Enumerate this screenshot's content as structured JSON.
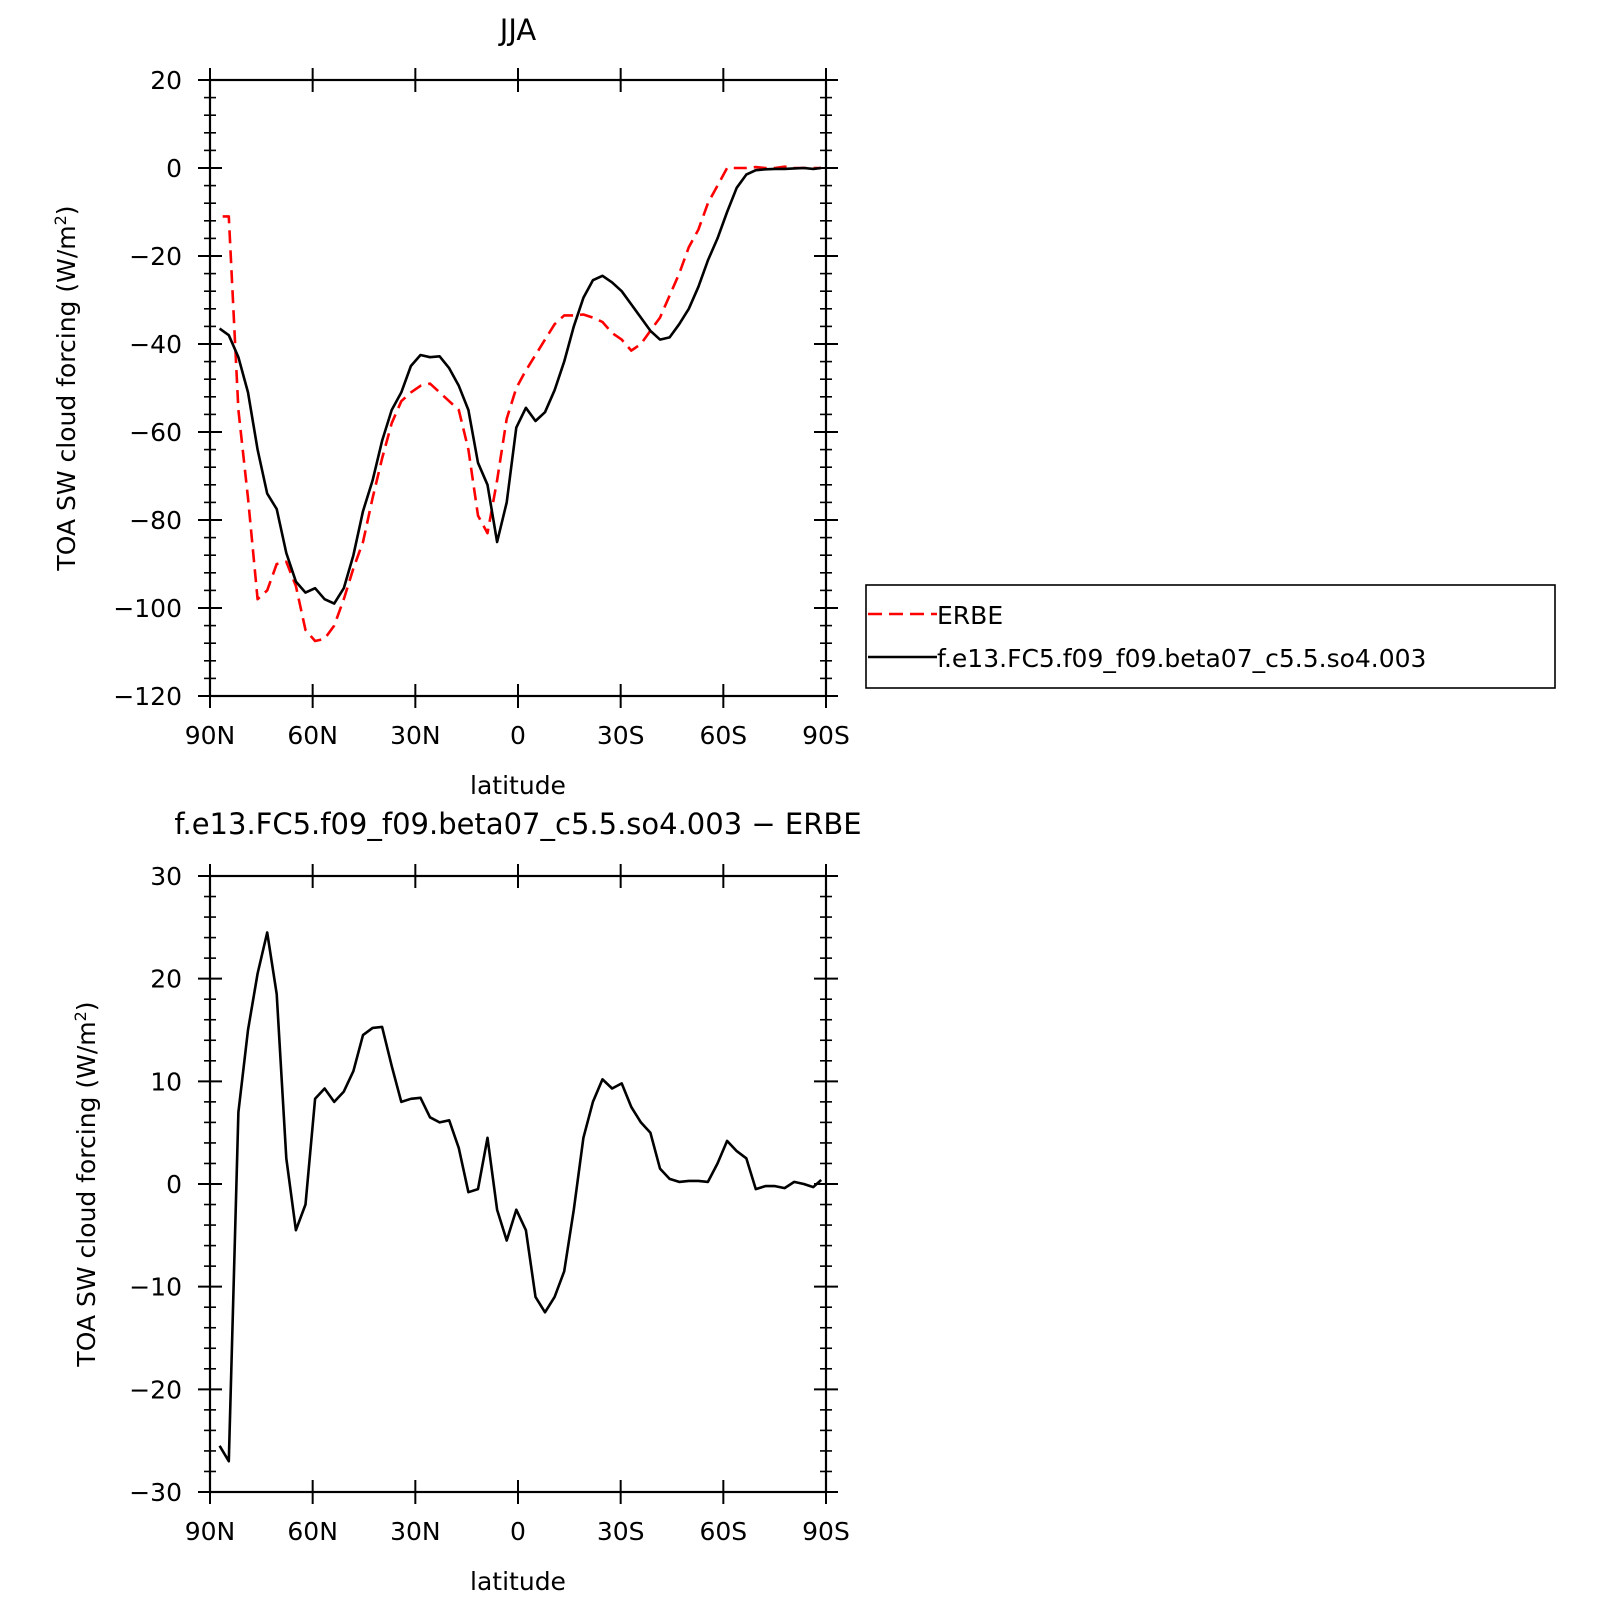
{
  "chart_data": [
    {
      "type": "line",
      "title": "JJA",
      "xlabel": "latitude",
      "ylabel": "TOA SW cloud forcing (W/m",
      "ylabel_sup": "2",
      "ylabel_close": ")",
      "xlim": [
        90,
        -90
      ],
      "ylim": [
        -120,
        20
      ],
      "x_ticks": [
        90,
        60,
        30,
        0,
        -30,
        -60,
        -90
      ],
      "x_tick_labels": [
        "90N",
        "60N",
        "30N",
        "0",
        "30S",
        "60S",
        "90S"
      ],
      "y_ticks": [
        20,
        0,
        -20,
        -40,
        -60,
        -80,
        -100,
        -120
      ],
      "y_tick_labels": [
        "20",
        "0",
        "−20",
        "−40",
        "−60",
        "−80",
        "−100",
        "−120"
      ],
      "legend_position": "right",
      "series": [
        {
          "name": "ERBE",
          "color": "#ff0000",
          "dash": "dashed",
          "x": [
            86.3,
            84.5,
            81.7,
            78.9,
            76.1,
            73.3,
            70.5,
            67.7,
            64.9,
            62.1,
            59.3,
            56.5,
            53.7,
            50.9,
            48.1,
            45.3,
            42.5,
            39.7,
            36.9,
            34.1,
            31.3,
            28.5,
            25.7,
            22.9,
            20.1,
            17.3,
            14.5,
            11.7,
            8.9,
            6.1,
            3.3,
            0.5,
            -2.3,
            -5.1,
            -7.9,
            -10.7,
            -13.5,
            -16.3,
            -19.1,
            -21.9,
            -24.7,
            -27.5,
            -30.3,
            -33.1,
            -35.9,
            -38.7,
            -41.5,
            -44.3,
            -47.1,
            -49.9,
            -52.7,
            -55.5,
            -58.3,
            -61.1,
            -63.9,
            -66.7,
            -69.5,
            -72.3,
            -75.1,
            -77.9,
            -80.7,
            -83.5,
            -86.3,
            -88.6
          ],
          "values": [
            -11,
            -11,
            -55,
            -75,
            -98,
            -96,
            -90,
            -89.5,
            -95,
            -105,
            -107.5,
            -107,
            -104,
            -98,
            -91,
            -85,
            -75,
            -66,
            -58,
            -53,
            -51,
            -49.5,
            -49,
            -51,
            -53,
            -55,
            -64,
            -79,
            -83,
            -71,
            -57,
            -50,
            -46,
            -42.5,
            -39,
            -35.5,
            -33.5,
            -33.5,
            -33.3,
            -34,
            -35,
            -37.5,
            -39,
            -41.5,
            -40,
            -37,
            -34,
            -29,
            -24,
            -18,
            -14,
            -8,
            -4,
            0,
            0,
            0,
            0.2,
            0,
            0,
            0.3,
            0,
            0,
            0,
            0
          ]
        },
        {
          "name": "f.e13.FC5.f09_f09.beta07_c5.5.so4.003",
          "color": "#000000",
          "dash": "solid",
          "x": [
            87.2,
            84.5,
            81.7,
            78.9,
            76.1,
            73.3,
            70.5,
            67.7,
            64.9,
            62.1,
            59.3,
            56.5,
            53.7,
            50.9,
            48.1,
            45.3,
            42.5,
            39.7,
            36.9,
            34.1,
            31.3,
            28.5,
            25.7,
            22.9,
            20.1,
            17.3,
            14.5,
            11.7,
            8.9,
            6.1,
            3.3,
            0.5,
            -2.3,
            -5.1,
            -7.9,
            -10.7,
            -13.5,
            -16.3,
            -19.1,
            -21.9,
            -24.7,
            -27.5,
            -30.3,
            -33.1,
            -35.9,
            -38.7,
            -41.5,
            -44.3,
            -47.1,
            -49.9,
            -52.7,
            -55.5,
            -58.3,
            -61.1,
            -63.9,
            -66.7,
            -69.5,
            -72.3,
            -75.1,
            -77.9,
            -80.7,
            -83.5,
            -86.3,
            -88.6
          ],
          "values": [
            -36.5,
            -38,
            -43,
            -51,
            -64,
            -74,
            -77.5,
            -87.5,
            -94,
            -96.5,
            -95.5,
            -98,
            -99,
            -95.5,
            -88,
            -78,
            -71,
            -62,
            -55,
            -51,
            -45,
            -42.5,
            -43,
            -42.8,
            -45.5,
            -49.5,
            -55,
            -67,
            -72,
            -85,
            -76,
            -59,
            -54.5,
            -57.5,
            -55.5,
            -50.5,
            -44,
            -36,
            -29.5,
            -25.5,
            -24.5,
            -26,
            -28,
            -31,
            -34,
            -37,
            -39,
            -38.5,
            -35.5,
            -32,
            -27,
            -21,
            -16,
            -10,
            -4.5,
            -1.5,
            -0.5,
            -0.3,
            -0.2,
            -0.2,
            -0.1,
            0,
            -0.2,
            0
          ]
        }
      ]
    },
    {
      "type": "line",
      "title": "f.e13.FC5.f09_f09.beta07_c5.5.so4.003 − ERBE",
      "xlabel": "latitude",
      "ylabel": "TOA SW cloud forcing (W/m",
      "ylabel_sup": "2",
      "ylabel_close": ")",
      "xlim": [
        90,
        -90
      ],
      "ylim": [
        -30,
        30
      ],
      "x_ticks": [
        90,
        60,
        30,
        0,
        -30,
        -60,
        -90
      ],
      "x_tick_labels": [
        "90N",
        "60N",
        "30N",
        "0",
        "30S",
        "60S",
        "90S"
      ],
      "y_ticks": [
        30,
        20,
        10,
        0,
        -10,
        -20,
        -30
      ],
      "y_tick_labels": [
        "30",
        "20",
        "10",
        "0",
        "−10",
        "−20",
        "−30"
      ],
      "series": [
        {
          "color": "#000000",
          "dash": "solid",
          "x": [
            87.2,
            84.5,
            81.7,
            78.9,
            76.1,
            73.3,
            70.5,
            67.7,
            64.9,
            62.1,
            59.3,
            56.5,
            53.7,
            50.9,
            48.1,
            45.3,
            42.5,
            39.7,
            36.9,
            34.1,
            31.3,
            28.5,
            25.7,
            22.9,
            20.1,
            17.3,
            14.5,
            11.7,
            8.9,
            6.1,
            3.3,
            0.5,
            -2.3,
            -5.1,
            -7.9,
            -10.7,
            -13.5,
            -16.3,
            -19.1,
            -21.9,
            -24.7,
            -27.5,
            -30.3,
            -33.1,
            -35.9,
            -38.7,
            -41.5,
            -44.3,
            -47.1,
            -49.9,
            -52.7,
            -55.5,
            -58.3,
            -61.1,
            -63.9,
            -66.7,
            -69.5,
            -72.3,
            -75.1,
            -77.9,
            -80.7,
            -83.5,
            -86.3,
            -88.6
          ],
          "values": [
            -25.5,
            -27,
            7,
            15,
            20.5,
            24.5,
            18.5,
            2.5,
            -4.5,
            -2,
            8.3,
            9.3,
            8,
            9,
            11,
            14.5,
            15.2,
            15.3,
            11.5,
            8,
            8.3,
            8.4,
            6.5,
            6,
            6.2,
            3.5,
            -0.8,
            -0.5,
            4.5,
            -2.5,
            -5.5,
            -2.5,
            -4.5,
            -11,
            -12.5,
            -11,
            -8.5,
            -2.5,
            4.5,
            8,
            10.2,
            9.3,
            9.8,
            7.5,
            6,
            5,
            1.5,
            0.5,
            0.2,
            0.3,
            0.3,
            0.2,
            2,
            4.2,
            3.2,
            2.5,
            -0.5,
            -0.2,
            -0.2,
            -0.4,
            0.2,
            0,
            -0.3,
            0.4
          ]
        }
      ]
    }
  ]
}
